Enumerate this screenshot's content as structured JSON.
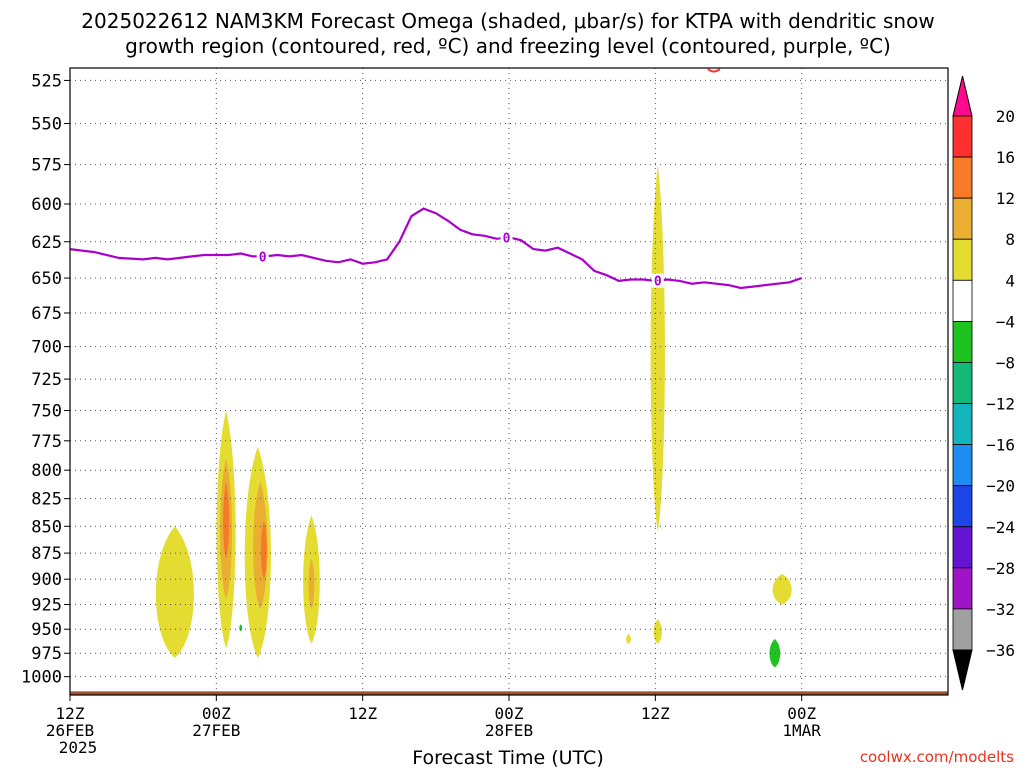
{
  "title": {
    "line1": "2025022612 NAM3KM Forecast Omega (shaded, μbar/s) for KTPA with dendritic snow",
    "line2": "growth region (contoured, red, ºC) and freezing level (contoured, purple, ºC)"
  },
  "watermark": "coolwx.com/modelts",
  "chart_data": {
    "type": "time-height cross section",
    "title": "2025022612 NAM3KM Forecast Omega (shaded, μbar/s) for KTPA with dendritic snow growth region (contoured, red, ºC) and freezing level (contoured, purple, ºC)",
    "xlabel": "Forecast Time (UTC)",
    "ylabel": "",
    "y_scale": "log-pressure (inverted)",
    "ylim": [
      1020,
      518
    ],
    "y_ticks": [
      525,
      550,
      575,
      600,
      625,
      650,
      675,
      700,
      725,
      750,
      775,
      800,
      825,
      850,
      875,
      900,
      925,
      950,
      975,
      1000
    ],
    "x_unit": "forecast hour from 2025-02-26 12Z",
    "xlim": [
      0,
      36
    ],
    "x_ticks": [
      {
        "hour": 0,
        "label1": "12Z",
        "label2": "26FEB",
        "label3": "2025"
      },
      {
        "hour": 6,
        "label1": "00Z",
        "label2": "27FEB",
        "label3": ""
      },
      {
        "hour": 12,
        "label1": "12Z",
        "label2": "",
        "label3": ""
      },
      {
        "hour": 18,
        "label1": "00Z",
        "label2": "28FEB",
        "label3": ""
      },
      {
        "hour": 24,
        "label1": "12Z",
        "label2": "",
        "label3": ""
      },
      {
        "hour": 30,
        "label1": "00Z",
        "label2": "1MAR",
        "label3": ""
      }
    ],
    "grid": true,
    "legend": "colorbar-right",
    "colorbar": {
      "levels": [
        "20",
        "16",
        "12",
        "8",
        "4",
        "−4",
        "−8",
        "−12",
        "−16",
        "−20",
        "−24",
        "−28",
        "−32",
        "−36"
      ],
      "colors": [
        "#ff0a8c",
        "#ff3030",
        "#f77a28",
        "#e9ae32",
        "#e5dc32",
        "#ffffff",
        "#1fc21f",
        "#14b878",
        "#14b4bc",
        "#1e8cf0",
        "#1e46e6",
        "#6414d2",
        "#a014c8",
        "#a0a0a0",
        "#000000"
      ]
    },
    "freezing_level": {
      "label": "0",
      "color": "#aa00cc",
      "hours": [
        0,
        1,
        2,
        3,
        3.5,
        4,
        4.5,
        5,
        5.5,
        6,
        6.5,
        7,
        7.5,
        8,
        8.5,
        9,
        9.5,
        10,
        10.5,
        11,
        11.5,
        12,
        12.5,
        13,
        13.5,
        14,
        14.5,
        15,
        15.5,
        16,
        16.5,
        17,
        17.5,
        18,
        18.5,
        19,
        19.5,
        20,
        20.5,
        21,
        21.5,
        22,
        22.5,
        23,
        23.5,
        24,
        24.5,
        25,
        25.5,
        26,
        26.5,
        27,
        27.5,
        28,
        28.5,
        29,
        29.5,
        30
      ],
      "pressure": [
        630,
        632,
        636,
        637,
        636,
        637,
        636,
        635,
        634,
        634,
        634,
        633,
        635,
        635,
        634,
        635,
        634,
        636,
        638,
        639,
        637,
        640,
        639,
        637,
        625,
        608,
        603,
        606,
        611,
        617,
        620,
        621,
        623,
        622,
        624,
        630,
        631,
        629,
        633,
        637,
        645,
        648,
        652,
        651,
        651,
        652,
        651,
        652,
        654,
        653,
        654,
        655,
        657,
        656,
        655,
        654,
        653,
        650
      ]
    },
    "omega_regions": [
      {
        "level": "4",
        "hour_center": 4.3,
        "pressure_top": 850,
        "pressure_bottom": 980,
        "hour_width": 1.6
      },
      {
        "level": "4",
        "hour_center": 6.4,
        "pressure_top": 750,
        "pressure_bottom": 970,
        "hour_width": 0.8
      },
      {
        "level": "8",
        "hour_center": 6.4,
        "pressure_top": 790,
        "pressure_bottom": 920,
        "hour_width": 0.5
      },
      {
        "level": "12",
        "hour_center": 6.4,
        "pressure_top": 810,
        "pressure_bottom": 880,
        "hour_width": 0.25
      },
      {
        "level": "4",
        "hour_center": 7.7,
        "pressure_top": 780,
        "pressure_bottom": 980,
        "hour_width": 1.1
      },
      {
        "level": "8",
        "hour_center": 7.8,
        "pressure_top": 810,
        "pressure_bottom": 930,
        "hour_width": 0.6
      },
      {
        "level": "12",
        "hour_center": 7.95,
        "pressure_top": 845,
        "pressure_bottom": 900,
        "hour_width": 0.25
      },
      {
        "level": "4",
        "hour_center": 9.9,
        "pressure_top": 840,
        "pressure_bottom": 965,
        "hour_width": 0.7
      },
      {
        "level": "8",
        "hour_center": 9.9,
        "pressure_top": 880,
        "pressure_bottom": 930,
        "hour_width": 0.25
      },
      {
        "level": "4",
        "hour_center": 24.1,
        "pressure_top": 575,
        "pressure_bottom": 855,
        "hour_width": 0.6
      },
      {
        "level": "4",
        "hour_center": 24.1,
        "pressure_top": 940,
        "pressure_bottom": 965,
        "hour_width": 0.35
      },
      {
        "level": "4",
        "hour_center": 22.9,
        "pressure_top": 955,
        "pressure_bottom": 965,
        "hour_width": 0.2
      },
      {
        "level": "4",
        "hour_center": 29.2,
        "pressure_top": 895,
        "pressure_bottom": 925,
        "hour_width": 0.8
      },
      {
        "level": "−4",
        "hour_center": 7.0,
        "pressure_top": 945,
        "pressure_bottom": 952,
        "hour_width": 0.12
      },
      {
        "level": "−4",
        "hour_center": 28.9,
        "pressure_top": 960,
        "pressure_bottom": 990,
        "hour_width": 0.45
      }
    ],
    "dgz_contour": {
      "hour_center": 26.4,
      "pressure": 521,
      "color": "#ff3030"
    },
    "terrain": {
      "pressure_top": 1016,
      "color": "#a0522d"
    }
  }
}
